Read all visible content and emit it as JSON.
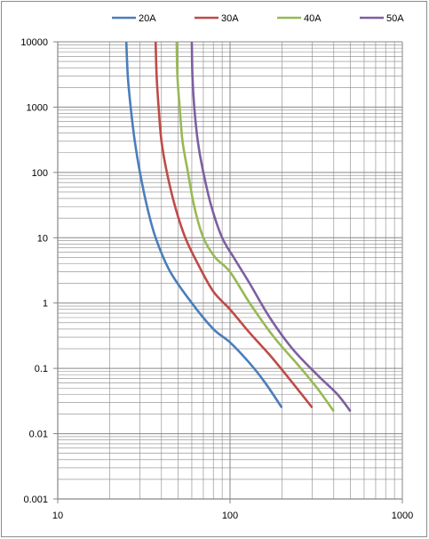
{
  "chart_data": {
    "type": "line",
    "title": "",
    "xlabel": "",
    "ylabel": "",
    "x_scale": "log",
    "y_scale": "log",
    "xlim": [
      10,
      1000
    ],
    "ylim": [
      0.001,
      10000
    ],
    "x_ticks": [
      "10",
      "100",
      "1000"
    ],
    "y_ticks": [
      "0.001",
      "0.01",
      "0.1",
      "1",
      "10",
      "100",
      "1000",
      "10000"
    ],
    "grid": true,
    "legend": "top",
    "series": [
      {
        "name": "20A",
        "color": "#4a7ebb",
        "points": [
          [
            25,
            10000
          ],
          [
            25.5,
            3000
          ],
          [
            26.5,
            1000
          ],
          [
            28,
            300
          ],
          [
            30,
            100
          ],
          [
            33,
            30
          ],
          [
            37,
            10
          ],
          [
            45,
            3
          ],
          [
            60,
            1
          ],
          [
            80,
            0.4
          ],
          [
            100,
            0.25
          ],
          [
            130,
            0.12
          ],
          [
            160,
            0.06
          ],
          [
            200,
            0.025
          ]
        ]
      },
      {
        "name": "30A",
        "color": "#be4b48",
        "points": [
          [
            37,
            10000
          ],
          [
            37.5,
            3000
          ],
          [
            38.5,
            1000
          ],
          [
            40,
            300
          ],
          [
            43,
            100
          ],
          [
            48,
            30
          ],
          [
            55,
            10
          ],
          [
            65,
            4
          ],
          [
            80,
            1.5
          ],
          [
            100,
            0.8
          ],
          [
            130,
            0.35
          ],
          [
            170,
            0.16
          ],
          [
            220,
            0.07
          ],
          [
            300,
            0.025
          ]
        ]
      },
      {
        "name": "40A",
        "color": "#98b954",
        "points": [
          [
            49,
            10000
          ],
          [
            49.5,
            3000
          ],
          [
            51,
            1000
          ],
          [
            53,
            300
          ],
          [
            57,
            100
          ],
          [
            62,
            30
          ],
          [
            70,
            10
          ],
          [
            82,
            5
          ],
          [
            100,
            3
          ],
          [
            130,
            1
          ],
          [
            180,
            0.3
          ],
          [
            250,
            0.11
          ],
          [
            320,
            0.05
          ],
          [
            400,
            0.022
          ]
        ]
      },
      {
        "name": "50A",
        "color": "#7d5fa0",
        "points": [
          [
            60,
            10000
          ],
          [
            60.5,
            3000
          ],
          [
            62,
            1000
          ],
          [
            65,
            300
          ],
          [
            70,
            100
          ],
          [
            78,
            30
          ],
          [
            90,
            10
          ],
          [
            105,
            5
          ],
          [
            130,
            2
          ],
          [
            170,
            0.6
          ],
          [
            230,
            0.2
          ],
          [
            320,
            0.08
          ],
          [
            420,
            0.04
          ],
          [
            500,
            0.022
          ]
        ]
      }
    ]
  },
  "colors": {
    "gridline": "#878787",
    "axis": "#878787",
    "frame": "#8c8c8c"
  }
}
